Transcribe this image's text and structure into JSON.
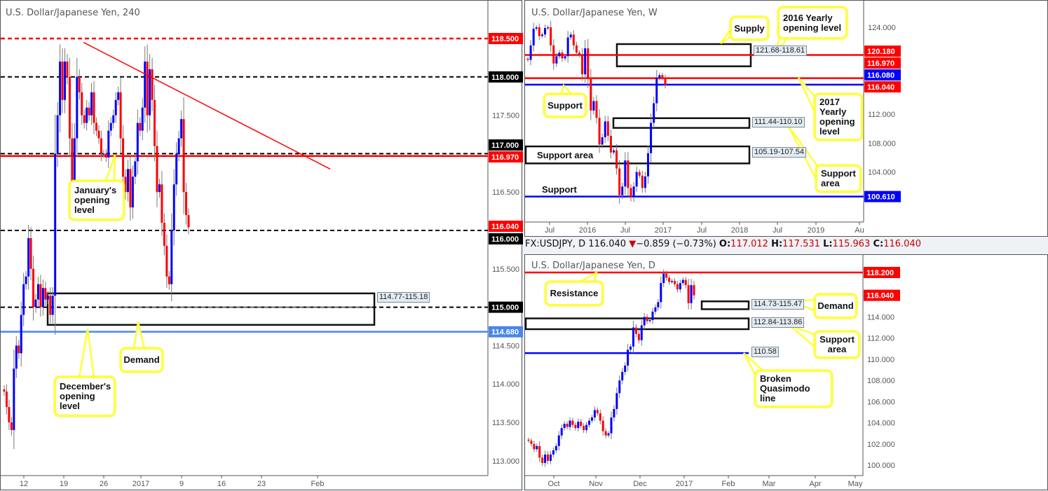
{
  "colors": {
    "bull": "#0000ff",
    "bear": "#ff0000",
    "resistance": "#ff0000",
    "support": "#0000ff",
    "blue_level": "#4a86e8",
    "callout_border": "#ffff3a"
  },
  "header": {
    "symbol": "FX:USDJPY, D",
    "last": "116.040",
    "arrow": "▼",
    "change": "−0.859 (−0.73%)",
    "o_label": "O:",
    "o": "117.012",
    "h_label": "H:",
    "h": "117.531",
    "l_label": "L:",
    "l": "115.963",
    "c_label": "C:",
    "c": "116.040"
  },
  "chart_data": [
    {
      "id": "h4",
      "type": "candlestick",
      "title": "U.S. Dollar/Japanese Yen, 240",
      "ylim": [
        112.8,
        118.75
      ],
      "y_ticks": [
        "117.500",
        "116.500",
        "115.500",
        "114.500",
        "114.000",
        "113.500",
        "113.000"
      ],
      "x_ticks": [
        "12",
        "19",
        "26",
        "2017",
        "9",
        "16",
        "23",
        "Feb"
      ],
      "closes": [
        113.9,
        113.7,
        113.5,
        113.4,
        114.2,
        114.5,
        114.4,
        114.9,
        115.3,
        115.4,
        115.9,
        115.5,
        115.0,
        115.1,
        115.3,
        115.0,
        115.25,
        115.1,
        115.15,
        114.9,
        115.15,
        117.0,
        117.5,
        118.2,
        117.7,
        118.2,
        118.0,
        117.2,
        116.6,
        117.2,
        118.0,
        117.8,
        117.5,
        117.4,
        117.6,
        117.5,
        117.8,
        117.4,
        117.3,
        117.2,
        117.0,
        117.0,
        116.95,
        117.3,
        117.4,
        117.5,
        117.7,
        117.8,
        117.2,
        116.7,
        116.5,
        116.8,
        116.3,
        116.7,
        116.9,
        117.4,
        117.3,
        117.6,
        118.2,
        117.5,
        118.1,
        117.7,
        117.1,
        116.5,
        116.6,
        116.1,
        115.8,
        115.4,
        115.3,
        116.0,
        116.6,
        117.0,
        117.2,
        117.45,
        116.5,
        116.2,
        116.04
      ],
      "levels": [
        {
          "price": 118.5,
          "label": "118.500",
          "color": "#ff0000",
          "style": "dashed"
        },
        {
          "price": 118.0,
          "label": "118.000",
          "color": "#000000",
          "style": "dashed"
        },
        {
          "price": 117.0,
          "label": "117.000",
          "color": "#000000",
          "style": "dashed"
        },
        {
          "price": 116.97,
          "label": "116.970",
          "color": "#ff0000",
          "style": "solid"
        },
        {
          "price": 116.0,
          "label": "116.000",
          "color": "#000000",
          "style": "dashed"
        },
        {
          "price": 116.04,
          "label": "116.040",
          "color": "#ff0000",
          "style": "none"
        },
        {
          "price": 115.0,
          "label": "115.000",
          "color": "#000000",
          "style": "dashed"
        },
        {
          "price": 114.68,
          "label": "114.680",
          "color": "#4a86e8",
          "style": "solid"
        }
      ],
      "trendline": {
        "from_price": 118.45,
        "to_price": 116.8
      },
      "zones": [
        {
          "label": "114.77-115.18",
          "low": 114.77,
          "high": 115.18
        }
      ],
      "callouts": [
        "January's opening level",
        "December's opening level",
        "Demand"
      ]
    },
    {
      "id": "w",
      "type": "candlestick",
      "title": "U.S. Dollar/Japanese Yen, W",
      "ylim": [
        96.3,
        126.5
      ],
      "y_ticks": [
        "124.000",
        "112.000",
        "108.000",
        "104.000"
      ],
      "x_ticks": [
        "Jul",
        "2016",
        "Jul",
        "2017",
        "Jul",
        "2018",
        "Jul",
        "2019",
        "Au"
      ],
      "closes": [
        119.5,
        121.5,
        123.8,
        124.0,
        122.8,
        123.0,
        123.9,
        124.0,
        121.5,
        119.0,
        120.0,
        120.5,
        119.7,
        120.0,
        122.6,
        123.0,
        121.5,
        120.5,
        120.2,
        117.5,
        121.1,
        116.9,
        112.5,
        113.8,
        111.5,
        107.8,
        108.8,
        111.0,
        109.0,
        106.7,
        107.0,
        104.5,
        100.8,
        102.0,
        105.6,
        101.8,
        100.5,
        102.0,
        104.0,
        103.5,
        101.8,
        103.4,
        106.6,
        110.8,
        113.5,
        117.0,
        117.4,
        117.0,
        116.04
      ],
      "levels": [
        {
          "price": 120.18,
          "label": "120.180",
          "color": "#ff0000",
          "style": "solid"
        },
        {
          "price": 116.97,
          "label": "116.970",
          "color": "#ff0000",
          "style": "solid"
        },
        {
          "price": 116.08,
          "label": "116.080",
          "color": "#0000ff",
          "style": "solid"
        },
        {
          "price": 116.04,
          "label": "116.040",
          "color": "#ff0000",
          "style": "none"
        },
        {
          "price": 100.61,
          "label": "100.610",
          "color": "#0000ff",
          "style": "solid"
        }
      ],
      "zones": [
        {
          "label": "121.68-118.61",
          "low": 118.61,
          "high": 121.68
        },
        {
          "label": "111.44-110.10",
          "low": 110.1,
          "high": 111.44
        },
        {
          "label": "105.19-107.54",
          "low": 105.19,
          "high": 107.54
        }
      ],
      "callouts": [
        "Supply",
        "2016 Yearly opening level",
        "Support",
        "2017 Yearly opening level",
        "Support area"
      ],
      "plain_labels": [
        "Support area",
        "Support"
      ]
    },
    {
      "id": "d",
      "type": "candlestick",
      "title": "U.S. Dollar/Japanese Yen, D",
      "ylim": [
        99.0,
        119.8
      ],
      "y_ticks": [
        "114.000",
        "112.000",
        "110.000",
        "108.000",
        "106.000",
        "104.000",
        "102.000",
        "100.000"
      ],
      "x_ticks": [
        "Oct",
        "Nov",
        "Dec",
        "2017",
        "Feb",
        "Mar",
        "Apr",
        "May"
      ],
      "closes": [
        102.3,
        102.0,
        101.5,
        101.8,
        100.7,
        100.2,
        101.0,
        100.4,
        101.0,
        101.4,
        101.8,
        102.8,
        103.5,
        103.9,
        103.6,
        104.2,
        103.8,
        103.5,
        104.1,
        103.7,
        103.3,
        103.8,
        104.2,
        104.5,
        105.2,
        104.9,
        104.2,
        103.2,
        102.8,
        103.0,
        104.5,
        105.3,
        106.8,
        108.0,
        108.8,
        109.4,
        110.9,
        111.2,
        113.0,
        112.4,
        111.8,
        113.2,
        114.0,
        113.6,
        113.7,
        114.5,
        114.9,
        115.4,
        117.2,
        118.1,
        117.7,
        117.3,
        117.4,
        117.1,
        116.6,
        117.2,
        117.5,
        117.0,
        115.3,
        117.0,
        116.04
      ],
      "levels": [
        {
          "price": 118.2,
          "label": "118.200",
          "color": "#ff0000",
          "style": "solid"
        },
        {
          "price": 116.04,
          "label": "116.040",
          "color": "#ff0000",
          "style": "none"
        },
        {
          "price": 110.58,
          "label": "",
          "color": "#0000ff",
          "style": "partial"
        }
      ],
      "zones": [
        {
          "label": "114.73-115.47",
          "low": 114.73,
          "high": 115.47
        },
        {
          "label": "112.84-113.86",
          "low": 112.84,
          "high": 113.86
        }
      ],
      "line_label": "110.58",
      "callouts": [
        "Resistance",
        "Demand",
        "Support area",
        "Broken Quasimodo line"
      ]
    }
  ]
}
